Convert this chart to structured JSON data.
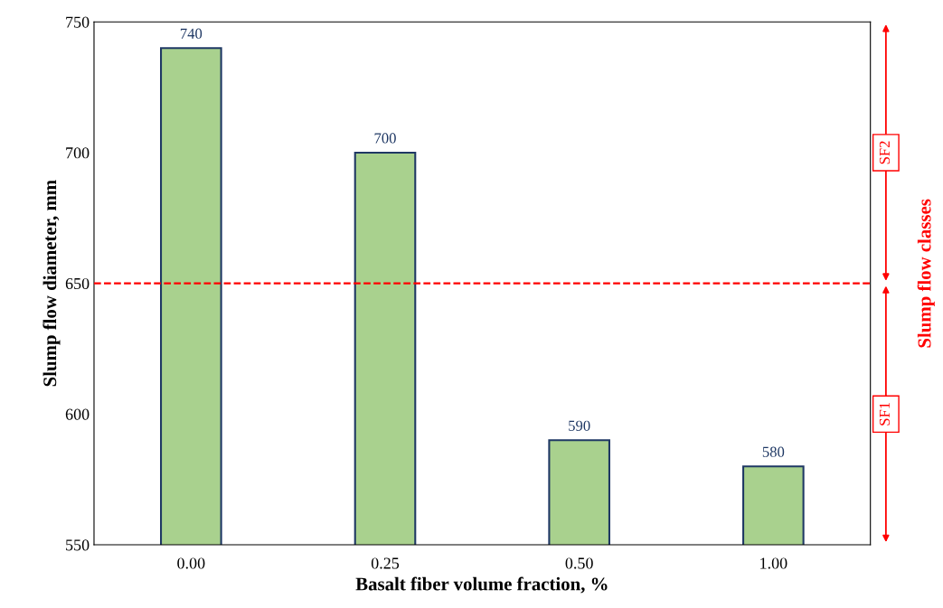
{
  "chart_data": {
    "type": "bar",
    "xlabel": "Basalt fiber volume fraction, %",
    "ylabel": "Slump flow diameter, mm",
    "categories": [
      "0.00",
      "0.25",
      "0.50",
      "1.00"
    ],
    "series": [
      {
        "color": "#a9d18e",
        "values": [
          740,
          700,
          590,
          580
        ]
      }
    ],
    "ylim": [
      550,
      750
    ],
    "yticks": [
      550,
      600,
      650,
      700,
      750
    ],
    "grid": false,
    "data_labels": true,
    "ref_lines": [
      {
        "axis": "y",
        "value": 650,
        "color": "#ff0000",
        "line_style": "dashed"
      }
    ],
    "annotations": [
      {
        "text": "SF2",
        "y": 700
      },
      {
        "text": "SF1",
        "y": 600
      },
      "Slump flow classes"
    ]
  }
}
